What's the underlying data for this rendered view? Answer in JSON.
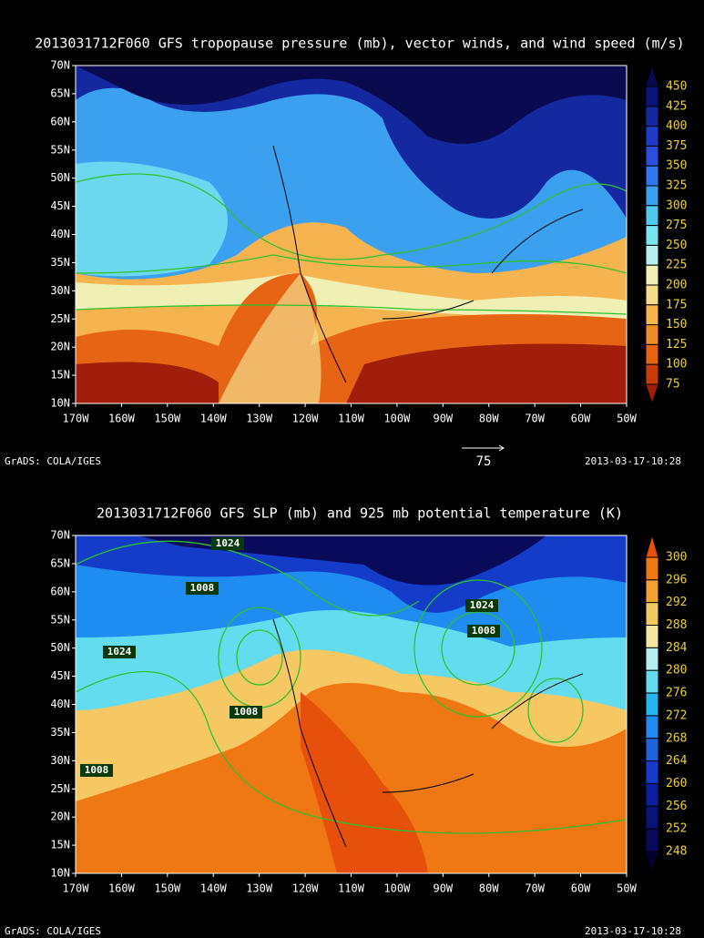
{
  "panels": [
    {
      "title": "2013031712F060 GFS tropopause pressure (mb), vector winds, and wind speed (m/s)",
      "lat_labels": [
        "70N",
        "65N",
        "60N",
        "55N",
        "50N",
        "45N",
        "40N",
        "35N",
        "30N",
        "25N",
        "20N",
        "15N",
        "10N"
      ],
      "lon_labels": [
        "170W",
        "160W",
        "150W",
        "140W",
        "130W",
        "120W",
        "110W",
        "100W",
        "90W",
        "80W",
        "70W",
        "60W",
        "50W"
      ],
      "colorbar": {
        "labels": [
          "450",
          "425",
          "400",
          "375",
          "350",
          "325",
          "300",
          "275",
          "250",
          "225",
          "200",
          "175",
          "150",
          "125",
          "100",
          "75"
        ],
        "colors": [
          "#0a0a50",
          "#0a1478",
          "#1428a0",
          "#1e3cc8",
          "#2850dc",
          "#2d78f0",
          "#3ca0f0",
          "#50c8f0",
          "#78e6f0",
          "#b4f0f0",
          "#f0f0b4",
          "#f5dc8c",
          "#f5b450",
          "#f08c28",
          "#e66414",
          "#c83c0a",
          "#a01e0a"
        ]
      },
      "vector_scale": "75",
      "footer_left": "GrADS: COLA/IGES",
      "footer_right": "2013-03-17-10:28"
    },
    {
      "title": "2013031712F060 GFS SLP (mb) and 925 mb potential temperature (K)",
      "lat_labels": [
        "70N",
        "65N",
        "60N",
        "55N",
        "50N",
        "45N",
        "40N",
        "35N",
        "30N",
        "25N",
        "20N",
        "15N",
        "10N"
      ],
      "lon_labels": [
        "170W",
        "160W",
        "150W",
        "140W",
        "130W",
        "120W",
        "110W",
        "100W",
        "90W",
        "80W",
        "70W",
        "60W",
        "50W"
      ],
      "colorbar": {
        "labels": [
          "300",
          "296",
          "292",
          "288",
          "284",
          "280",
          "276",
          "272",
          "268",
          "264",
          "260",
          "256",
          "252",
          "248"
        ],
        "colors": [
          "#e6500a",
          "#f07814",
          "#f5a032",
          "#f5c864",
          "#f5e6a0",
          "#b4f0f0",
          "#64dcf0",
          "#28b4f0",
          "#1e8cf0",
          "#1e64dc",
          "#143cc8",
          "#0a1ea0",
          "#0a1478",
          "#0a0a5a",
          "#050032"
        ]
      },
      "contour_labels": [
        "1024",
        "1008",
        "1024",
        "1008",
        "1008",
        "1024",
        "1008"
      ],
      "footer_left": "GrADS: COLA/IGES",
      "footer_right": "2013-03-17-10:28"
    }
  ]
}
